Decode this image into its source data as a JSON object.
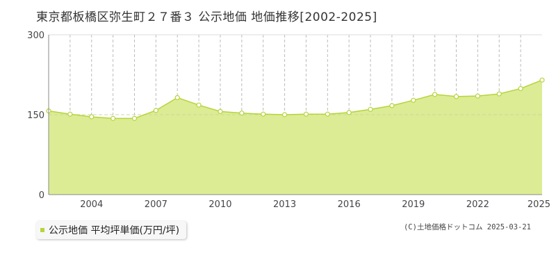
{
  "chart_data": {
    "type": "area",
    "title": "東京都板橋区弥生町２７番３ 公示地価 地価推移[2002-2025]",
    "x": [
      2002,
      2003,
      2004,
      2005,
      2006,
      2007,
      2008,
      2009,
      2010,
      2011,
      2012,
      2013,
      2014,
      2015,
      2016,
      2017,
      2018,
      2019,
      2020,
      2021,
      2022,
      2023,
      2024,
      2025
    ],
    "series": [
      {
        "name": "公示地価 平均坪単価(万円/坪)",
        "values": [
          157,
          151,
          146,
          143,
          143,
          158,
          182,
          168,
          156,
          153,
          151,
          150,
          151,
          151,
          154,
          160,
          167,
          177,
          188,
          184,
          185,
          189,
          199,
          215
        ]
      }
    ],
    "x_tick_labels": [
      "2004",
      "2007",
      "2010",
      "2013",
      "2016",
      "2019",
      "2022",
      "2025"
    ],
    "y_tick_labels": [
      "0",
      "150",
      "300"
    ],
    "ylim": [
      0,
      300
    ],
    "xlim": [
      2002,
      2025
    ],
    "xlabel": "",
    "ylabel": "",
    "grid": true,
    "legend_position": "bottom-left",
    "colors": {
      "fill": "#dcec94",
      "line": "#b5d43a",
      "marker_fill": "#ffffff",
      "grid": "#bbbbbb",
      "axis": "#888888",
      "midline": "#c8d8a0"
    },
    "copyright": "(C)土地価格ドットコム 2025-03-21"
  }
}
